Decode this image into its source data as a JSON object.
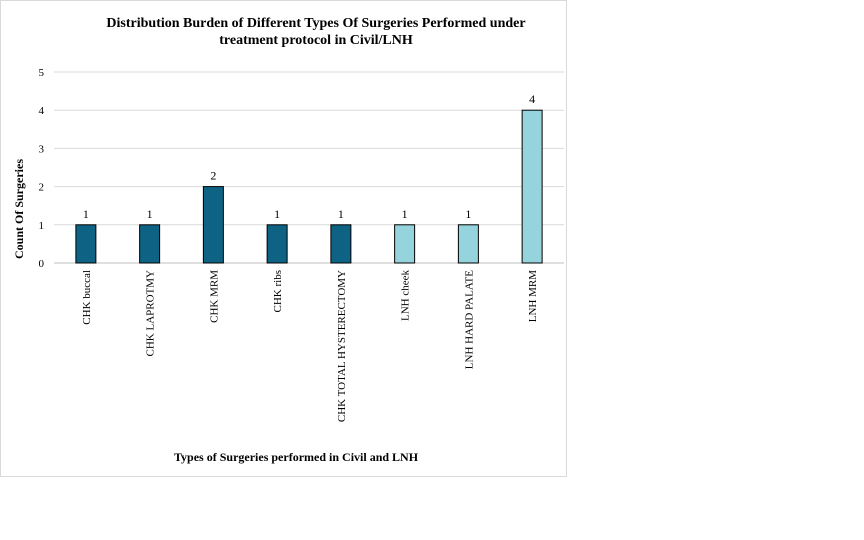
{
  "chart_data": {
    "type": "bar",
    "title_lines": [
      "Distribution Burden of Different Types Of Surgeries Performed under",
      "treatment protocol in Civil/LNH"
    ],
    "xlabel": "Types of Surgeries performed in Civil and LNH",
    "ylabel": "Count Of Surgeries",
    "ylim": [
      0,
      5
    ],
    "yticks": [
      0,
      1,
      2,
      3,
      4,
      5
    ],
    "grid": true,
    "legend": "none",
    "categories": [
      "CHK buccal",
      "CHK LAPROTMY",
      "CHK MRM",
      "CHK ribs",
      "CHK TOTAL HYSTERECTOMY",
      "LNH cheek",
      "LNH HARD PALATE",
      "LNH MRM"
    ],
    "values": [
      1,
      1,
      2,
      1,
      1,
      1,
      1,
      4
    ],
    "bar_colors": [
      "#0e6385",
      "#0e6385",
      "#0e6385",
      "#0e6385",
      "#0e6385",
      "#95d3dd",
      "#95d3dd",
      "#95d3dd"
    ],
    "data_labels": [
      "1",
      "1",
      "2",
      "1",
      "1",
      "1",
      "1",
      "4"
    ]
  }
}
